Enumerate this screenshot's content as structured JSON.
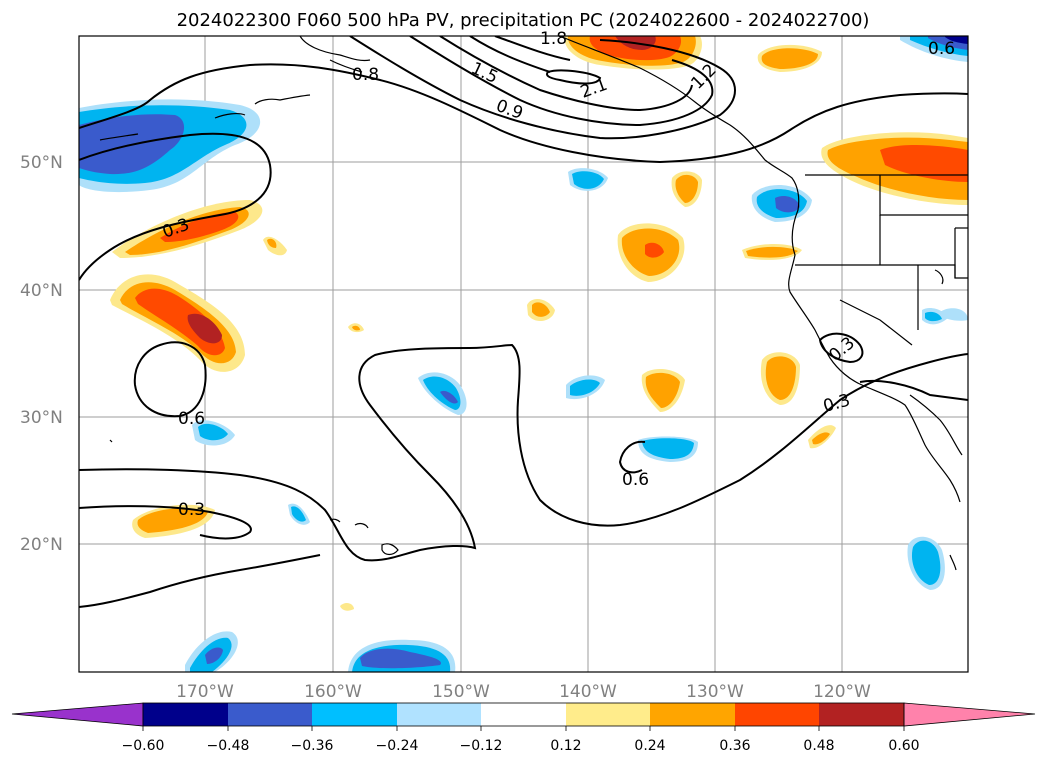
{
  "title": "2024022300 F060 500 hPa PV, precipitation PC (2024022600 - 2024022700)",
  "map": {
    "lat_labels": [
      "50°N",
      "40°N",
      "30°N",
      "20°N"
    ],
    "lon_labels": [
      "170°W",
      "160°W",
      "150°W",
      "140°W",
      "130°W",
      "120°W"
    ],
    "contour_labels": [
      "1.8",
      "0.8",
      "1.5",
      "2.1",
      "0.9",
      "1.2",
      "0.3",
      "0.6",
      "0.6",
      "0.3",
      "0.6",
      "0.3",
      "0.3"
    ],
    "fill_colors": {
      "neg_strong": "#3a5bcc",
      "neg_mid": "#00b4f0",
      "neg_weak": "#aee0fa",
      "pos_weak": "#fde88b",
      "pos_mid": "#ffa200",
      "pos_strong": "#ff4a00",
      "pos_max": "#b22222",
      "neg_max": "#00008b"
    }
  },
  "colorbar": {
    "ticks": [
      "−0.60",
      "−0.48",
      "−0.36",
      "−0.24",
      "−0.12",
      "0.12",
      "0.24",
      "0.36",
      "0.48",
      "0.60"
    ],
    "colors": [
      "#9932cc",
      "#00008b",
      "#3a5bcc",
      "#00bfff",
      "#b0e2ff",
      "#ffffff",
      "#ffec8b",
      "#ffa500",
      "#ff4500",
      "#b22222",
      "#ff82ab"
    ]
  }
}
